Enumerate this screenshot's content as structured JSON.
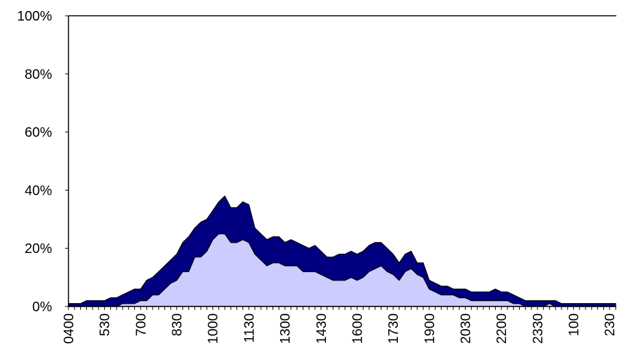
{
  "chart_data": {
    "type": "stacked-area",
    "categories": [
      "0400",
      null,
      null,
      null,
      null,
      null,
      "530",
      null,
      null,
      null,
      null,
      null,
      "700",
      null,
      null,
      null,
      null,
      null,
      "830",
      null,
      null,
      null,
      null,
      null,
      "1000",
      null,
      null,
      null,
      null,
      null,
      "1130",
      null,
      null,
      null,
      null,
      null,
      "1300",
      null,
      null,
      null,
      null,
      null,
      "1430",
      null,
      null,
      null,
      null,
      null,
      "1600",
      null,
      null,
      null,
      null,
      null,
      "1730",
      null,
      null,
      null,
      null,
      null,
      "1900",
      null,
      null,
      null,
      null,
      null,
      "2030",
      null,
      null,
      null,
      null,
      null,
      "2200",
      null,
      null,
      null,
      null,
      null,
      "2330",
      null,
      null,
      null,
      null,
      null,
      "100",
      null,
      null,
      null,
      null,
      null,
      "230",
      null
    ],
    "series": [
      {
        "color": "#ccccff",
        "values": [
          0,
          0,
          0,
          0,
          0,
          0,
          0,
          0,
          0,
          1,
          1,
          1,
          2,
          2,
          4,
          4,
          6,
          8,
          9,
          12,
          12,
          17,
          17,
          19,
          23,
          25,
          25,
          22,
          22,
          23,
          22,
          18,
          16,
          14,
          15,
          15,
          14,
          14,
          14,
          12,
          12,
          12,
          11,
          10,
          9,
          9,
          9,
          10,
          9,
          10,
          12,
          13,
          14,
          12,
          11,
          9,
          12,
          13,
          11,
          10,
          6,
          5,
          4,
          4,
          4,
          3,
          3,
          2,
          2,
          2,
          2,
          2,
          2,
          2,
          1,
          1,
          0,
          0,
          0,
          0,
          1,
          0,
          0,
          0,
          0,
          0,
          0,
          0,
          0,
          0,
          0,
          0
        ]
      },
      {
        "color": "#000080",
        "values": [
          1,
          1,
          1,
          2,
          2,
          2,
          2,
          3,
          3,
          3,
          4,
          5,
          4,
          7,
          6,
          8,
          8,
          8,
          9,
          10,
          12,
          10,
          12,
          11,
          10,
          11,
          13,
          12,
          12,
          13,
          13,
          9,
          9,
          9,
          9,
          9,
          8,
          9,
          8,
          9,
          8,
          9,
          8,
          7,
          8,
          9,
          9,
          9,
          9,
          9,
          9,
          9,
          8,
          8,
          7,
          6,
          6,
          6,
          4,
          5,
          3,
          3,
          3,
          3,
          2,
          3,
          3,
          3,
          3,
          3,
          3,
          4,
          3,
          3,
          3,
          2,
          2,
          2,
          2,
          2,
          1,
          2,
          1,
          1,
          1,
          1,
          1,
          1,
          1,
          1,
          1,
          1
        ]
      }
    ],
    "ylim": [
      0,
      100
    ],
    "yticks": [
      {
        "value": 0,
        "label": "0%"
      },
      {
        "value": 20,
        "label": "20%"
      },
      {
        "value": 40,
        "label": "40%"
      },
      {
        "value": 60,
        "label": "60%"
      },
      {
        "value": 80,
        "label": "80%"
      },
      {
        "value": 100,
        "label": "100%"
      }
    ]
  }
}
